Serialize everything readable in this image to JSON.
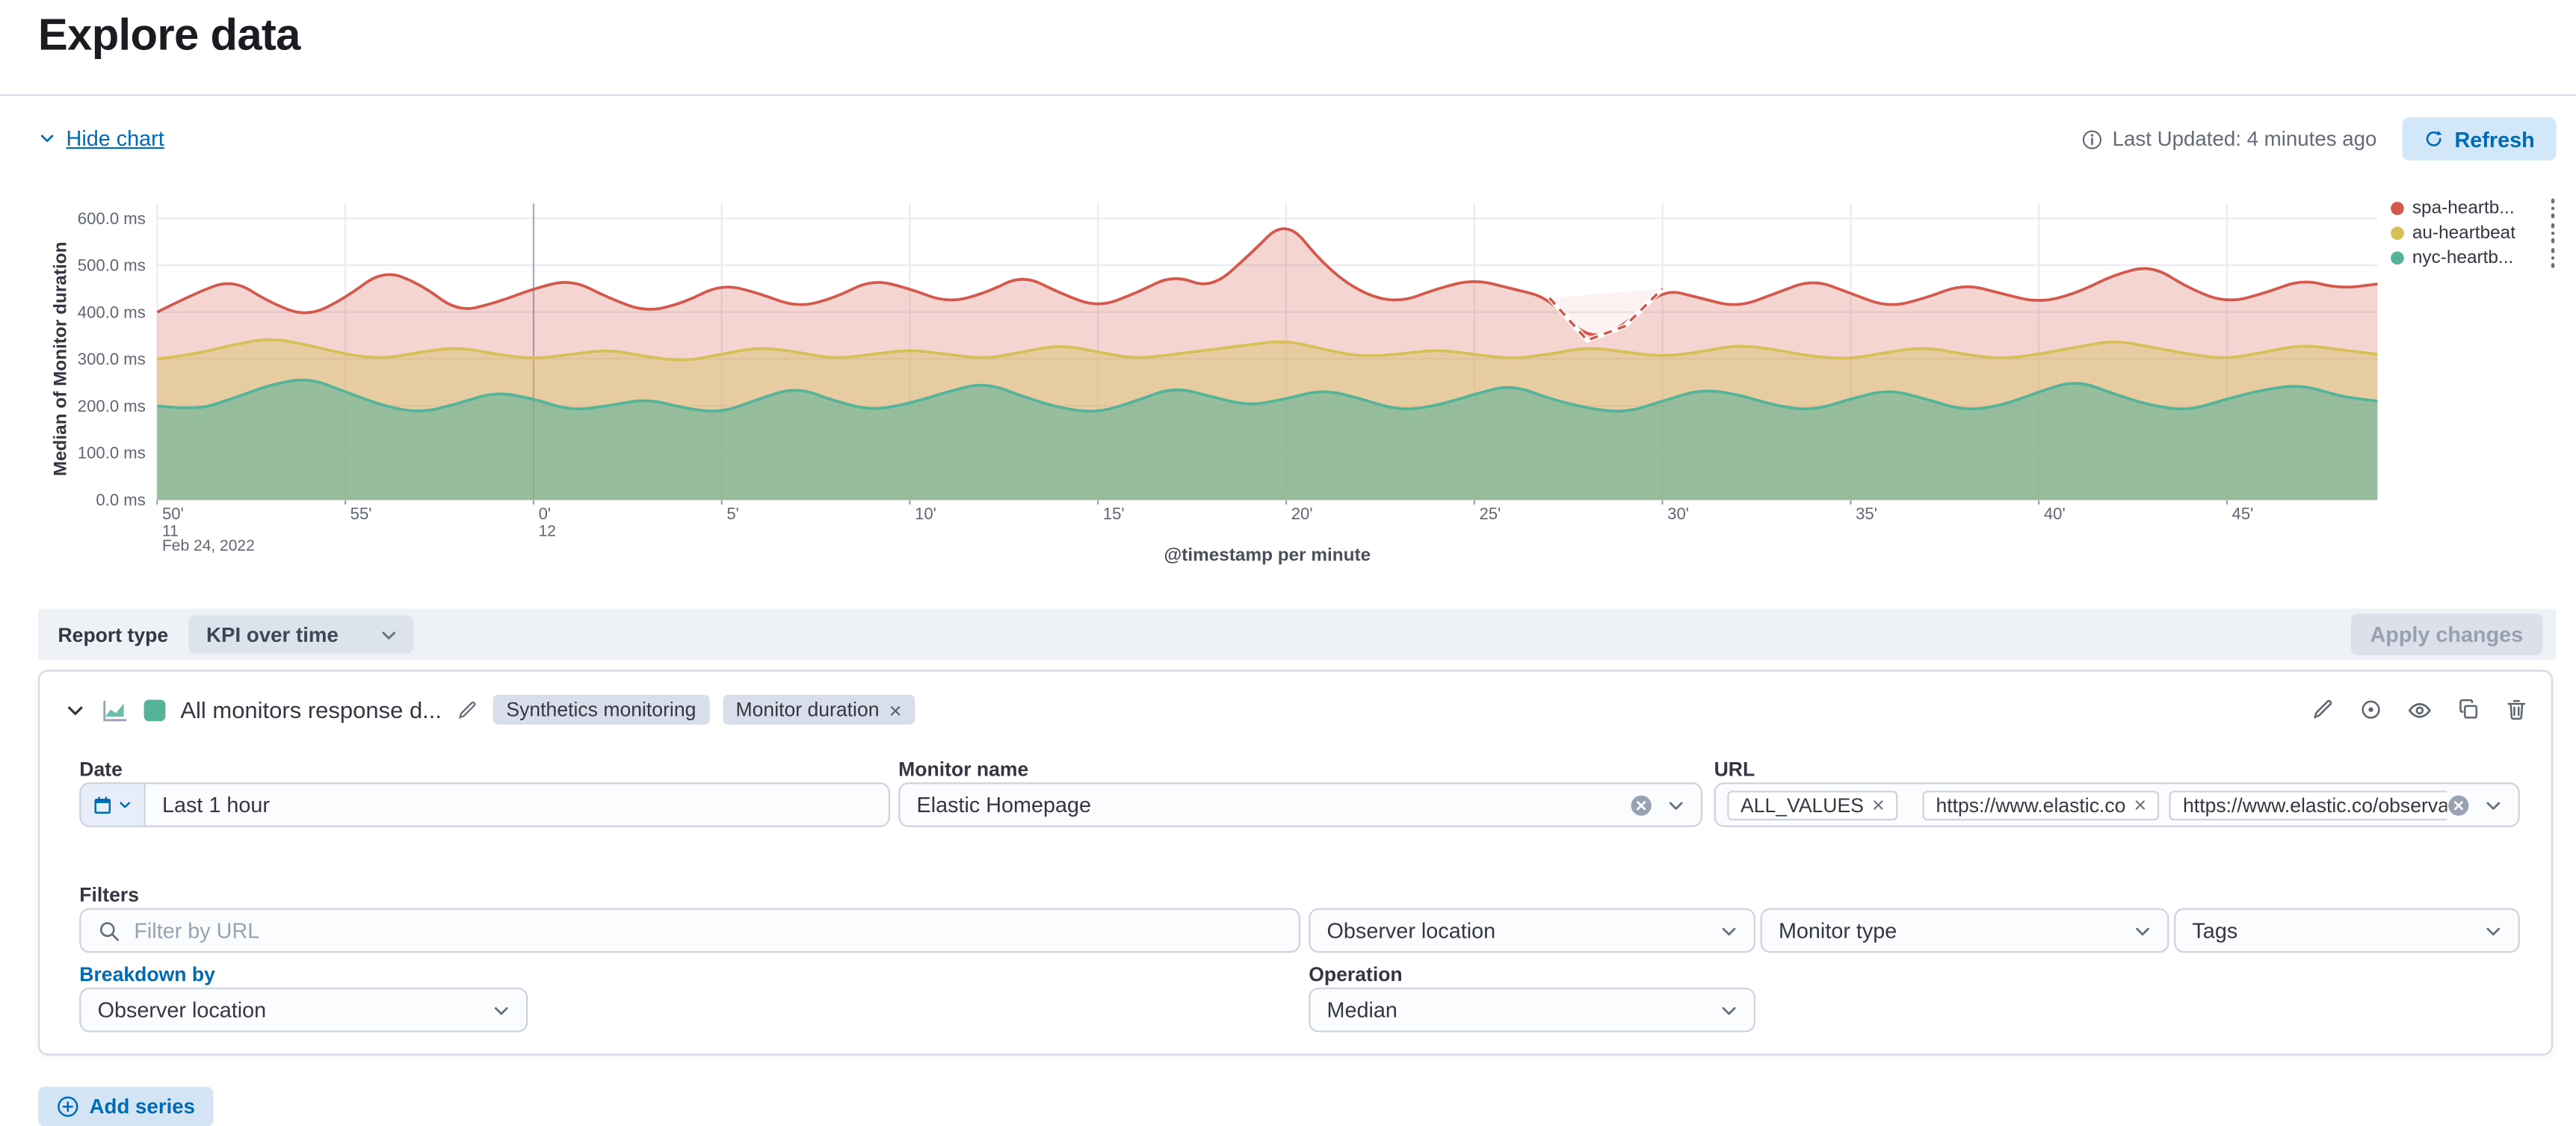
{
  "page": {
    "title": "Explore data"
  },
  "toolbar": {
    "hide_chart": "Hide chart",
    "last_updated": "Last Updated: 4 minutes ago",
    "refresh": "Refresh"
  },
  "colors": {
    "primary": "#006bb4",
    "primary_fill": "#d2e7f7",
    "border": "#d3dae6",
    "text": "#343741",
    "subdued": "#69707d",
    "bar_bg": "#eef1f6",
    "badge_bg": "#d9dfea"
  },
  "icons": {
    "chevron-down": "⌄",
    "info": "ⓘ",
    "refresh": "⟳",
    "calendar": "📅",
    "search": "🔍",
    "edit": "✎",
    "inspect": "◎",
    "eye": "👁",
    "copy": "⧉",
    "trash": "🗑",
    "add": "⊕",
    "remove": "×",
    "clear": "⊗",
    "kebab": "⋮"
  },
  "chart_data": {
    "type": "area",
    "title": "",
    "xlabel": "@timestamp per minute",
    "ylabel": "Median of Monitor duration",
    "ylim": [
      0,
      600
    ],
    "x_domain_minutes": [
      0,
      59
    ],
    "grid": true,
    "legend_position": "right",
    "y_ticks": [
      {
        "v": 600,
        "label": "600.0 ms"
      },
      {
        "v": 500,
        "label": "500.0 ms"
      },
      {
        "v": 400,
        "label": "400.0 ms"
      },
      {
        "v": 300,
        "label": "300.0 ms"
      },
      {
        "v": 200,
        "label": "200.0 ms"
      },
      {
        "v": 100,
        "label": "100.0 ms"
      },
      {
        "v": 0,
        "label": "0.0 ms"
      }
    ],
    "x_ticks": [
      {
        "m": 0,
        "label": "50'"
      },
      {
        "m": 5,
        "label": "55'"
      },
      {
        "m": 10,
        "label": "0'",
        "major": true
      },
      {
        "m": 15,
        "label": "5'"
      },
      {
        "m": 20,
        "label": "10'"
      },
      {
        "m": 25,
        "label": "15'"
      },
      {
        "m": 30,
        "label": "20'"
      },
      {
        "m": 35,
        "label": "25'"
      },
      {
        "m": 40,
        "label": "30'"
      },
      {
        "m": 45,
        "label": "35'"
      },
      {
        "m": 50,
        "label": "40'"
      },
      {
        "m": 55,
        "label": "45'"
      }
    ],
    "x_secondary": [
      {
        "m": 0,
        "label": "11"
      },
      {
        "m": 10,
        "label": "12"
      }
    ],
    "x_date_label": "Feb 24, 2022",
    "series": [
      {
        "name": "spa-heartb...",
        "color": "#d2594c",
        "fill_opacity": 0.25,
        "gap": {
          "from": 37,
          "to": 40
        },
        "values": [
          400,
          440,
          470,
          420,
          390,
          430,
          490,
          460,
          400,
          420,
          450,
          470,
          430,
          400,
          420,
          460,
          440,
          410,
          430,
          470,
          450,
          420,
          440,
          480,
          440,
          410,
          440,
          480,
          450,
          520,
          600,
          500,
          440,
          420,
          450,
          470,
          450,
          430,
          340,
          370,
          450,
          430,
          410,
          440,
          470,
          440,
          410,
          430,
          460,
          440,
          420,
          440,
          480,
          500,
          450,
          420,
          440,
          470,
          450,
          460
        ]
      },
      {
        "name": "au-heartbeat",
        "color": "#d6bf57",
        "fill_opacity": 0.4,
        "values": [
          300,
          310,
          330,
          345,
          330,
          310,
          300,
          315,
          325,
          310,
          300,
          310,
          320,
          305,
          295,
          310,
          325,
          315,
          300,
          310,
          320,
          310,
          300,
          315,
          330,
          315,
          300,
          310,
          320,
          330,
          340,
          320,
          305,
          310,
          320,
          310,
          300,
          310,
          325,
          315,
          305,
          315,
          330,
          320,
          305,
          300,
          315,
          325,
          310,
          300,
          310,
          325,
          340,
          325,
          310,
          300,
          315,
          330,
          320,
          310
        ]
      },
      {
        "name": "nyc-heartb...",
        "color": "#54b399",
        "fill_opacity": 0.55,
        "values": [
          200,
          190,
          215,
          245,
          260,
          230,
          200,
          185,
          205,
          230,
          215,
          190,
          200,
          215,
          195,
          185,
          215,
          240,
          210,
          190,
          205,
          230,
          250,
          220,
          195,
          185,
          210,
          240,
          220,
          200,
          215,
          235,
          215,
          190,
          200,
          225,
          245,
          215,
          195,
          185,
          210,
          235,
          225,
          200,
          190,
          215,
          235,
          215,
          190,
          200,
          230,
          255,
          225,
          200,
          190,
          215,
          235,
          245,
          220,
          210
        ]
      }
    ]
  },
  "report_bar": {
    "label": "Report type",
    "value": "KPI over time",
    "apply_button": "Apply changes"
  },
  "series_panel": {
    "title": "All monitors response d...",
    "swatch_color": "#54b399",
    "badges": [
      {
        "label": "Synthetics monitoring",
        "closable": false
      },
      {
        "label": "Monitor duration",
        "closable": true
      }
    ],
    "fields": {
      "date": {
        "label": "Date",
        "value": "Last 1 hour"
      },
      "monitor_name": {
        "label": "Monitor name",
        "value": "Elastic Homepage"
      },
      "url": {
        "label": "URL",
        "pills": [
          "ALL_VALUES",
          "https://www.elastic.co",
          "https://www.elastic.co/observability"
        ]
      }
    },
    "filters": {
      "label": "Filters",
      "search_placeholder": "Filter by URL",
      "selects": [
        "Observer location",
        "Monitor type",
        "Tags"
      ]
    },
    "breakdown": {
      "label": "Breakdown by",
      "value": "Observer location"
    },
    "operation": {
      "label": "Operation",
      "value": "Median"
    }
  },
  "footer": {
    "add_series": "Add series"
  }
}
